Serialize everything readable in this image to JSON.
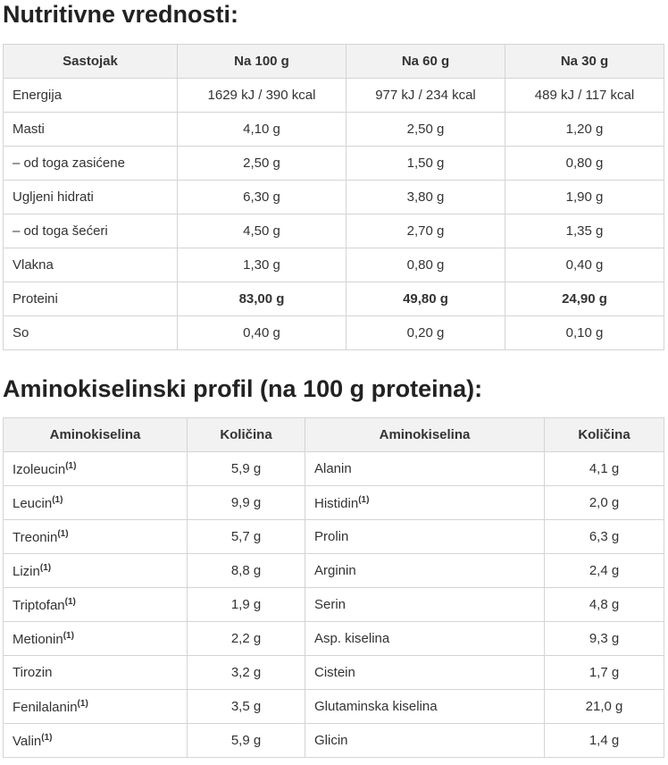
{
  "nutrition": {
    "title": "Nutritivne vrednosti:",
    "header": [
      "Sastojak",
      "Na 100 g",
      "Na 60 g",
      "Na 30 g"
    ],
    "rows": [
      [
        "Energija",
        "1629 kJ / 390 kcal",
        "977 kJ / 234 kcal",
        "489 kJ / 117 kcal"
      ],
      [
        "Masti",
        "4,10 g",
        "2,50 g",
        "1,20 g"
      ],
      [
        "– od toga zasićene",
        "2,50 g",
        "1,50 g",
        "0,80 g"
      ],
      [
        "Ugljeni hidrati",
        "6,30 g",
        "3,80 g",
        "1,90 g"
      ],
      [
        "– od toga šećeri",
        "4,50 g",
        "2,70 g",
        "1,35 g"
      ],
      [
        "Vlakna",
        "1,30 g",
        "0,80 g",
        "0,40 g"
      ],
      [
        "Proteini",
        "83,00 g",
        "49,80 g",
        "24,90 g"
      ],
      [
        "So",
        "0,40 g",
        "0,20 g",
        "0,10 g"
      ]
    ]
  },
  "amino": {
    "title": "Aminokiselinski profil (na 100 g proteina):",
    "header": [
      "Aminokiselina",
      "Količina",
      "Aminokiselina",
      "Količina"
    ],
    "rows": [
      {
        "name1": "Izoleucin",
        "note1": "(1)",
        "amount1": "5,9 g",
        "name2": "Alanin",
        "amount2": "4,1 g"
      },
      {
        "name1": "Leucin",
        "note1": "(1)",
        "amount1": "9,9 g",
        "name2": "Histidin",
        "note2": "(1)",
        "amount2": "2,0 g"
      },
      {
        "name1": "Treonin",
        "note1": "(1)",
        "amount1": "5,7 g",
        "name2": "Prolin",
        "amount2": "6,3 g"
      },
      {
        "name1": "Lizin",
        "note1": "(1)",
        "amount1": "8,8 g",
        "name2": "Arginin",
        "amount2": "2,4 g"
      },
      {
        "name1": "Triptofan",
        "note1": "(1)",
        "amount1": "1,9 g",
        "name2": "Serin",
        "amount2": "4,8 g"
      },
      {
        "name1": "Metionin",
        "note1": "(1)",
        "amount1": "2,2 g",
        "name2": "Asp. kiselina",
        "amount2": "9,3 g"
      },
      {
        "name1": "Tirozin",
        "amount1": "3,2 g",
        "name2": "Cistein",
        "amount2": "1,7 g"
      },
      {
        "name1": "Fenilalanin",
        "note1": "(1)",
        "amount1": "3,5 g",
        "name2": "Glutaminska kiselina",
        "amount2": "21,0 g"
      },
      {
        "name1": "Valin",
        "note1": "(1)",
        "amount1": "5,9 g",
        "name2": "Glicin",
        "amount2": "1,4 g"
      }
    ]
  }
}
